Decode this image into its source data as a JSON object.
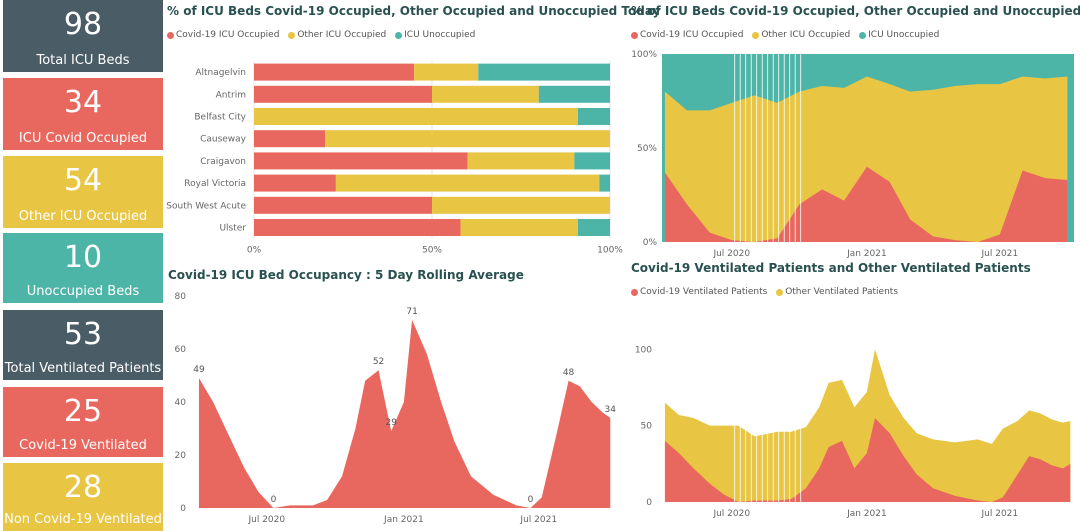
{
  "kpis": [
    {
      "value": "98",
      "label": "Total ICU Beds",
      "color": "#4a5c66"
    },
    {
      "value": "34",
      "label": "ICU Covid Occupied",
      "color": "#e8685f"
    },
    {
      "value": "54",
      "label": "Other ICU Occupied",
      "color": "#e8c542"
    },
    {
      "value": "10",
      "label": "Unoccupied Beds",
      "color": "#4db5a8"
    },
    {
      "value": "53",
      "label": "Total Ventilated Patients",
      "color": "#4a5c66"
    },
    {
      "value": "25",
      "label": "Covid-19 Ventilated",
      "color": "#e8685f"
    },
    {
      "value": "28",
      "label": "Non Covid-19 Ventilated",
      "color": "#e8c542"
    }
  ],
  "colors": {
    "covid": "#e8685f",
    "other": "#e8c542",
    "unoccupied": "#4db5a8"
  },
  "chart_data": [
    {
      "type": "bar",
      "orientation": "horizontal-stacked-100",
      "title": "% of ICU Beds Covid-19 Occupied, Other Occupied and Unoccupied Today",
      "legend": [
        "Covid-19 ICU Occupied",
        "Other ICU Occupied",
        "ICU Unoccupied"
      ],
      "categories": [
        "Altnagelvin",
        "Antrim",
        "Belfast City",
        "Causeway",
        "Craigavon",
        "Royal Victoria",
        "South West Acute",
        "Ulster"
      ],
      "series": [
        {
          "name": "Covid-19 ICU Occupied",
          "values": [
            45,
            50,
            0,
            20,
            60,
            23,
            50,
            58
          ]
        },
        {
          "name": "Other ICU Occupied",
          "values": [
            18,
            30,
            91,
            80,
            30,
            74,
            50,
            33
          ]
        },
        {
          "name": "ICU Unoccupied",
          "values": [
            37,
            20,
            9,
            0,
            10,
            3,
            0,
            9
          ]
        }
      ],
      "xticks": [
        "0%",
        "50%",
        "100%"
      ]
    },
    {
      "type": "area",
      "stacked": "100%",
      "title": "% of ICU Beds Covid-19 Occupied, Other Occupied and Unoccupied",
      "legend": [
        "Covid-19 ICU Occupied",
        "Other ICU Occupied",
        "ICU Unoccupied"
      ],
      "yticks": [
        "0%",
        "50%",
        "100%"
      ],
      "xticks": [
        "Jul 2020",
        "Jan 2021",
        "Jul 2021"
      ],
      "x": [
        "2020-04-01",
        "2020-05-01",
        "2020-06-01",
        "2020-07-01",
        "2020-08-01",
        "2020-09-01",
        "2020-10-01",
        "2020-11-01",
        "2020-12-01",
        "2021-01-01",
        "2021-02-01",
        "2021-03-01",
        "2021-04-01",
        "2021-05-01",
        "2021-06-01",
        "2021-07-01",
        "2021-08-01",
        "2021-09-01",
        "2021-10-01"
      ],
      "series": [
        {
          "name": "Covid-19 ICU Occupied",
          "values": [
            37,
            20,
            5,
            1,
            0,
            2,
            20,
            28,
            22,
            40,
            32,
            12,
            3,
            1,
            0,
            4,
            38,
            34,
            33
          ]
        },
        {
          "name": "Other ICU Occupied",
          "values": [
            43,
            50,
            65,
            73,
            78,
            72,
            60,
            55,
            60,
            48,
            52,
            68,
            78,
            82,
            84,
            80,
            50,
            53,
            55
          ]
        },
        {
          "name": "ICU Unoccupied",
          "values": [
            20,
            30,
            30,
            26,
            22,
            26,
            20,
            17,
            18,
            12,
            16,
            20,
            19,
            17,
            16,
            16,
            12,
            13,
            12
          ]
        }
      ]
    },
    {
      "type": "area",
      "title": "Covid-19 ICU Bed Occupancy : 5 Day Rolling Average",
      "ylim": [
        0,
        80
      ],
      "yticks": [
        0,
        20,
        40,
        60,
        80
      ],
      "xticks": [
        "Jul 2020",
        "Jan 2021",
        "Jul 2021"
      ],
      "x": [
        "2020-04-01",
        "2020-04-20",
        "2020-05-10",
        "2020-06-01",
        "2020-06-20",
        "2020-07-10",
        "2020-08-01",
        "2020-09-01",
        "2020-09-20",
        "2020-10-10",
        "2020-10-28",
        "2020-11-10",
        "2020-11-28",
        "2020-12-15",
        "2021-01-01",
        "2021-01-12",
        "2021-02-01",
        "2021-02-20",
        "2021-03-10",
        "2021-04-01",
        "2021-05-01",
        "2021-06-01",
        "2021-06-20",
        "2021-07-05",
        "2021-07-25",
        "2021-08-10",
        "2021-08-25",
        "2021-09-10",
        "2021-09-25",
        "2021-10-05"
      ],
      "values": [
        49,
        40,
        28,
        15,
        6,
        0,
        1,
        1,
        3,
        12,
        30,
        48,
        52,
        29,
        40,
        71,
        58,
        40,
        25,
        12,
        5,
        1,
        0,
        4,
        28,
        48,
        46,
        40,
        36,
        34
      ],
      "data_labels": [
        {
          "x": "2020-04-01",
          "label": "49"
        },
        {
          "x": "2020-07-10",
          "label": "0"
        },
        {
          "x": "2020-11-28",
          "label": "52"
        },
        {
          "x": "2020-12-15",
          "label": "29"
        },
        {
          "x": "2021-01-12",
          "label": "71"
        },
        {
          "x": "2021-06-20",
          "label": "0"
        },
        {
          "x": "2021-08-10",
          "label": "48"
        },
        {
          "x": "2021-10-05",
          "label": "34"
        }
      ]
    },
    {
      "type": "area",
      "stacked": true,
      "title": "Covid-19 Ventilated Patients and Other Ventilated Patients",
      "legend": [
        "Covid-19 Ventilated Patients",
        "Other Ventilated Patients"
      ],
      "ylim": [
        0,
        110
      ],
      "yticks": [
        0,
        50,
        100
      ],
      "xticks": [
        "Jul 2020",
        "Jan 2021",
        "Jul 2021"
      ],
      "x": [
        "2020-04-01",
        "2020-04-20",
        "2020-05-10",
        "2020-06-01",
        "2020-06-20",
        "2020-07-10",
        "2020-08-01",
        "2020-09-01",
        "2020-09-20",
        "2020-10-10",
        "2020-10-28",
        "2020-11-10",
        "2020-11-28",
        "2020-12-15",
        "2021-01-01",
        "2021-01-12",
        "2021-02-01",
        "2021-02-20",
        "2021-03-10",
        "2021-04-01",
        "2021-05-01",
        "2021-06-01",
        "2021-06-20",
        "2021-07-05",
        "2021-07-25",
        "2021-08-10",
        "2021-08-25",
        "2021-09-10",
        "2021-09-25",
        "2021-10-05"
      ],
      "series": [
        {
          "name": "Covid-19 Ventilated Patients",
          "values": [
            40,
            32,
            22,
            12,
            5,
            0,
            1,
            1,
            2,
            9,
            22,
            36,
            40,
            22,
            32,
            55,
            45,
            30,
            18,
            9,
            4,
            1,
            0,
            3,
            18,
            30,
            28,
            24,
            22,
            25
          ]
        },
        {
          "name": "Other Ventilated Patients",
          "values": [
            25,
            25,
            33,
            38,
            45,
            50,
            42,
            45,
            44,
            40,
            40,
            42,
            40,
            40,
            40,
            45,
            25,
            25,
            27,
            32,
            35,
            40,
            38,
            45,
            35,
            30,
            30,
            30,
            30,
            28
          ]
        }
      ]
    }
  ]
}
